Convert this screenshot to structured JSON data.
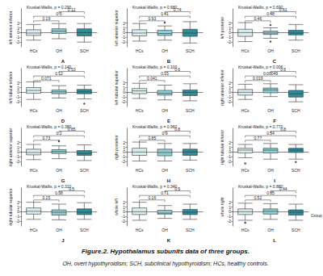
{
  "chart_data": [
    {
      "type": "boxplot",
      "panel": "A",
      "title": "Kruskal-Wallis, p = 0.290",
      "y_label": "left anterior inferior",
      "categories": [
        "HCs",
        "OH",
        "SCH"
      ],
      "colors": [
        "#d9eef0",
        "#8fcdd3",
        "#2b8e9a"
      ],
      "values": [
        [
          -1.6,
          -0.6,
          -0.1,
          0.6,
          1.7
        ],
        [
          -1.3,
          -0.2,
          0.3,
          0.8,
          1.9
        ],
        [
          -2.0,
          -0.7,
          0.0,
          0.8,
          1.9
        ]
      ],
      "outliers": [],
      "comparisons": [
        {
          "groups": [
            "HCs",
            "OH"
          ],
          "p": 0.19
        },
        {
          "groups": [
            "HCs",
            "SCH"
          ],
          "p": 0.5
        },
        {
          "groups": [
            "OH",
            "SCH"
          ],
          "p": 0.12
        }
      ],
      "ylim": [
        -3,
        5
      ],
      "yticks": [
        -2,
        -1,
        0,
        1,
        2
      ],
      "grid": false
    },
    {
      "type": "boxplot",
      "panel": "B",
      "title": "Kruskal-Wallis, p = 0.680",
      "y_label": "left anterior superior",
      "categories": [
        "HCs",
        "OH",
        "SCH"
      ],
      "colors": [
        "#d9eef0",
        "#8fcdd3",
        "#2b8e9a"
      ],
      "values": [
        [
          -1.8,
          -0.7,
          -0.1,
          0.6,
          1.9
        ],
        [
          -1.6,
          -0.6,
          -0.2,
          0.5,
          1.4
        ],
        [
          -2.2,
          -0.8,
          -0.1,
          0.7,
          2.3
        ]
      ],
      "outliers": [
        [
          1,
          2.1
        ]
      ],
      "comparisons": [
        {
          "groups": [
            "HCs",
            "OH"
          ],
          "p": 0.93
        },
        {
          "groups": [
            "HCs",
            "SCH"
          ],
          "p": 0.41
        },
        {
          "groups": [
            "OH",
            "SCH"
          ],
          "p": 0.74
        }
      ],
      "ylim": [
        -3,
        5
      ],
      "yticks": [
        -2,
        -1,
        0,
        1,
        2
      ],
      "grid": false
    },
    {
      "type": "boxplot",
      "panel": "C",
      "title": "Kruskal-Wallis, p = 0.690",
      "y_label": "left posterior",
      "categories": [
        "HCs",
        "OH",
        "SCH"
      ],
      "colors": [
        "#d9eef0",
        "#8fcdd3",
        "#2b8e9a"
      ],
      "values": [
        [
          -1.9,
          -0.8,
          0.0,
          0.7,
          2.1
        ],
        [
          -1.2,
          -0.4,
          -0.1,
          0.3,
          1.0
        ],
        [
          -1.6,
          -0.5,
          -0.1,
          0.5,
          1.7
        ]
      ],
      "outliers": [
        [
          1,
          1.6
        ],
        [
          1,
          -1.9
        ]
      ],
      "comparisons": [
        {
          "groups": [
            "HCs",
            "OH"
          ],
          "p": 0.46
        },
        {
          "groups": [
            "HCs",
            "SCH"
          ],
          "p": 0.48
        },
        {
          "groups": [
            "OH",
            "SCH"
          ],
          "p": 0.61
        }
      ],
      "ylim": [
        -3,
        5
      ],
      "yticks": [
        -2,
        -1,
        0,
        1,
        2
      ],
      "grid": false
    },
    {
      "type": "boxplot",
      "panel": "D",
      "title": "Kruskal-Wallis, p = 0.140",
      "y_label": "left tubular inferior",
      "categories": [
        "HCs",
        "OH",
        "SCH"
      ],
      "colors": [
        "#d9eef0",
        "#8fcdd3",
        "#2b8e9a"
      ],
      "values": [
        [
          -1.5,
          -0.2,
          0.4,
          1.0,
          2.2
        ],
        [
          -1.2,
          -0.3,
          0.1,
          0.5,
          1.4
        ],
        [
          -1.4,
          -0.3,
          0.1,
          0.6,
          1.5
        ]
      ],
      "outliers": [
        [
          2,
          -2.4
        ]
      ],
      "comparisons": [
        {
          "groups": [
            "HCs",
            "OH"
          ],
          "p": 0.071
        },
        {
          "groups": [
            "HCs",
            "SCH"
          ],
          "p": 0.12
        },
        {
          "groups": [
            "OH",
            "SCH"
          ],
          "p": 0.53
        }
      ],
      "ylim": [
        -3,
        5
      ],
      "yticks": [
        -2,
        -1,
        0,
        1,
        2
      ],
      "grid": false
    },
    {
      "type": "boxplot",
      "panel": "E",
      "title": "Kruskal-Wallis, p = 0.100",
      "y_label": "left tubular superior",
      "categories": [
        "HCs",
        "OH",
        "SCH"
      ],
      "colors": [
        "#d9eef0",
        "#8fcdd3",
        "#2b8e9a"
      ],
      "values": [
        [
          -1.3,
          -0.3,
          0.3,
          0.8,
          1.9
        ],
        [
          -1.6,
          -0.6,
          -0.2,
          0.4,
          1.5
        ],
        [
          -1.8,
          -0.7,
          0.0,
          0.5,
          1.8
        ]
      ],
      "outliers": [],
      "comparisons": [
        {
          "groups": [
            "HCs",
            "OH"
          ],
          "p": 0.041
        },
        {
          "groups": [
            "HCs",
            "SCH"
          ],
          "p": 0.15
        },
        {
          "groups": [
            "OH",
            "SCH"
          ],
          "p": 0.6
        }
      ],
      "ylim": [
        -3,
        5
      ],
      "yticks": [
        -2,
        -1,
        0,
        1,
        2
      ],
      "grid": false
    },
    {
      "type": "boxplot",
      "panel": "F",
      "title": "Kruskal-Wallis, p = 0.006",
      "y_label": "right anterior inferior",
      "categories": [
        "HCs",
        "OH",
        "SCH"
      ],
      "colors": [
        "#d9eef0",
        "#8fcdd3",
        "#2b8e9a"
      ],
      "values": [
        [
          -1.5,
          -0.6,
          0.0,
          0.6,
          1.7
        ],
        [
          -0.9,
          -0.1,
          0.5,
          0.9,
          1.8
        ],
        [
          -2.0,
          -1.0,
          -0.3,
          0.4,
          1.6
        ]
      ],
      "outliers": [],
      "comparisons": [
        {
          "groups": [
            "HCs",
            "OH"
          ],
          "p": 0.019
        },
        {
          "groups": [
            "HCs",
            "SCH"
          ],
          "p": 0.00049
        },
        {
          "groups": [
            "OH",
            "SCH"
          ],
          "p": 0.6
        }
      ],
      "ylim": [
        -3,
        5
      ],
      "yticks": [
        -2,
        -1,
        0,
        1,
        2
      ],
      "grid": false
    },
    {
      "type": "boxplot",
      "panel": "G",
      "title": "Kruskal-Wallis, p = 0.380",
      "y_label": "right anterior superior",
      "categories": [
        "HCs",
        "OH",
        "SCH"
      ],
      "colors": [
        "#d9eef0",
        "#8fcdd3",
        "#2b8e9a"
      ],
      "values": [
        [
          -1.6,
          -0.6,
          -0.1,
          0.6,
          1.6
        ],
        [
          -1.4,
          -0.3,
          0.1,
          0.5,
          1.3
        ],
        [
          -1.8,
          -0.7,
          -0.3,
          0.3,
          1.5
        ]
      ],
      "outliers": [
        [
          1,
          2.3
        ]
      ],
      "comparisons": [
        {
          "groups": [
            "HCs",
            "OH"
          ],
          "p": 0.73
        },
        {
          "groups": [
            "HCs",
            "SCH"
          ],
          "p": 0.2
        },
        {
          "groups": [
            "OH",
            "SCH"
          ],
          "p": 0.85
        }
      ],
      "ylim": [
        -3,
        5
      ],
      "yticks": [
        -2,
        -1,
        0,
        1,
        2
      ],
      "grid": false
    },
    {
      "type": "boxplot",
      "panel": "H",
      "title": "Kruskal-Wallis, p = 0.960",
      "y_label": "right posterior",
      "categories": [
        "HCs",
        "OH",
        "SCH"
      ],
      "colors": [
        "#d9eef0",
        "#8fcdd3",
        "#2b8e9a"
      ],
      "values": [
        [
          -1.9,
          -0.7,
          0.0,
          0.8,
          2.1
        ],
        [
          -1.9,
          -0.8,
          -0.1,
          0.6,
          1.8
        ],
        [
          -1.7,
          -0.7,
          0.0,
          0.6,
          1.8
        ]
      ],
      "outliers": [],
      "comparisons": [
        {
          "groups": [
            "HCs",
            "OH"
          ],
          "p": 0.85
        },
        {
          "groups": [
            "HCs",
            "SCH"
          ],
          "p": 0.9
        },
        {
          "groups": [
            "OH",
            "SCH"
          ],
          "p": 0.8
        }
      ],
      "ylim": [
        -3,
        5
      ],
      "yticks": [
        -2,
        -1,
        0,
        1,
        2
      ],
      "grid": false
    },
    {
      "type": "boxplot",
      "panel": "I",
      "title": "Kruskal-Wallis, p = 0.770",
      "y_label": "right tubular inferior",
      "categories": [
        "HCs",
        "OH",
        "SCH"
      ],
      "colors": [
        "#d9eef0",
        "#8fcdd3",
        "#2b8e9a"
      ],
      "values": [
        [
          -1.2,
          -0.2,
          0.4,
          0.8,
          1.6
        ],
        [
          -1.5,
          -0.2,
          0.4,
          0.8,
          1.8
        ],
        [
          -1.5,
          -0.1,
          0.4,
          0.8,
          1.6
        ]
      ],
      "outliers": [
        [
          0,
          -2.4
        ],
        [
          2,
          -2.1
        ]
      ],
      "comparisons": [
        {
          "groups": [
            "HCs",
            "OH"
          ],
          "p": 0.77
        },
        {
          "groups": [
            "HCs",
            "SCH"
          ],
          "p": 0.54
        },
        {
          "groups": [
            "OH",
            "SCH"
          ],
          "p": 0.8
        }
      ],
      "ylim": [
        -3,
        5
      ],
      "yticks": [
        -2,
        -1,
        0,
        1,
        2
      ],
      "grid": false
    },
    {
      "type": "boxplot",
      "panel": "J",
      "title": "Kruskal-Wallis, p = 0.310",
      "y_label": "right tubular superior",
      "categories": [
        "HCs",
        "OH",
        "SCH"
      ],
      "colors": [
        "#d9eef0",
        "#8fcdd3",
        "#2b8e9a"
      ],
      "values": [
        [
          -1.6,
          -0.5,
          0.1,
          0.8,
          2.0
        ],
        [
          -1.7,
          -0.7,
          -0.1,
          0.4,
          1.6
        ],
        [
          -1.6,
          -0.6,
          -0.1,
          0.6,
          1.9
        ]
      ],
      "outliers": [],
      "comparisons": [
        {
          "groups": [
            "HCs",
            "OH"
          ],
          "p": 0.15
        },
        {
          "groups": [
            "HCs",
            "SCH"
          ],
          "p": 0.38
        },
        {
          "groups": [
            "OH",
            "SCH"
          ],
          "p": 0.5
        }
      ],
      "ylim": [
        -3,
        5
      ],
      "yticks": [
        -2,
        -1,
        0,
        1,
        2
      ],
      "grid": false
    },
    {
      "type": "boxplot",
      "panel": "K",
      "title": "Kruskal-Wallis, p = 0.340",
      "y_label": "whole left",
      "categories": [
        "HCs",
        "OH",
        "SCH"
      ],
      "colors": [
        "#d9eef0",
        "#8fcdd3",
        "#2b8e9a"
      ],
      "values": [
        [
          -1.8,
          -0.6,
          0.0,
          0.8,
          2.0
        ],
        [
          -1.4,
          -0.5,
          -0.3,
          0.3,
          1.3
        ],
        [
          -1.6,
          -0.6,
          -0.1,
          0.5,
          1.6
        ]
      ],
      "outliers": [],
      "comparisons": [
        {
          "groups": [
            "HCs",
            "OH"
          ],
          "p": 0.16
        },
        {
          "groups": [
            "HCs",
            "SCH"
          ],
          "p": 0.71
        },
        {
          "groups": [
            "OH",
            "SCH"
          ],
          "p": 0.5
        }
      ],
      "ylim": [
        -3,
        5
      ],
      "yticks": [
        -2,
        -1,
        0,
        1,
        2
      ],
      "grid": false
    },
    {
      "type": "boxplot",
      "panel": "L",
      "title": "Kruskal-Wallis, p = 0.880",
      "y_label": "whole right",
      "x_label": "Group",
      "categories": [
        "HCs",
        "OH",
        "SCH"
      ],
      "colors": [
        "#d9eef0",
        "#8fcdd3",
        "#2b8e9a"
      ],
      "values": [
        [
          -1.8,
          -0.6,
          0.0,
          0.6,
          1.8
        ],
        [
          -1.6,
          -0.5,
          0.1,
          0.6,
          1.7
        ],
        [
          -1.8,
          -0.7,
          -0.1,
          0.4,
          1.6
        ]
      ],
      "outliers": [
        [
          0,
          -2.3
        ]
      ],
      "comparisons": [
        {
          "groups": [
            "HCs",
            "OH"
          ],
          "p": 0.52
        },
        {
          "groups": [
            "HCs",
            "SCH"
          ],
          "p": 0.85
        },
        {
          "groups": [
            "OH",
            "SCH"
          ],
          "p": 0.44
        }
      ],
      "ylim": [
        -3,
        5
      ],
      "yticks": [
        -2,
        -1,
        0,
        1,
        2
      ],
      "grid": false
    }
  ],
  "caption": {
    "title": "Figure.2. Hypothalamus subunits data of three groups.",
    "note": "OH, overt hypothyroidism; SCH, subclinical hypothyroidism; HCs, healthy controls."
  }
}
